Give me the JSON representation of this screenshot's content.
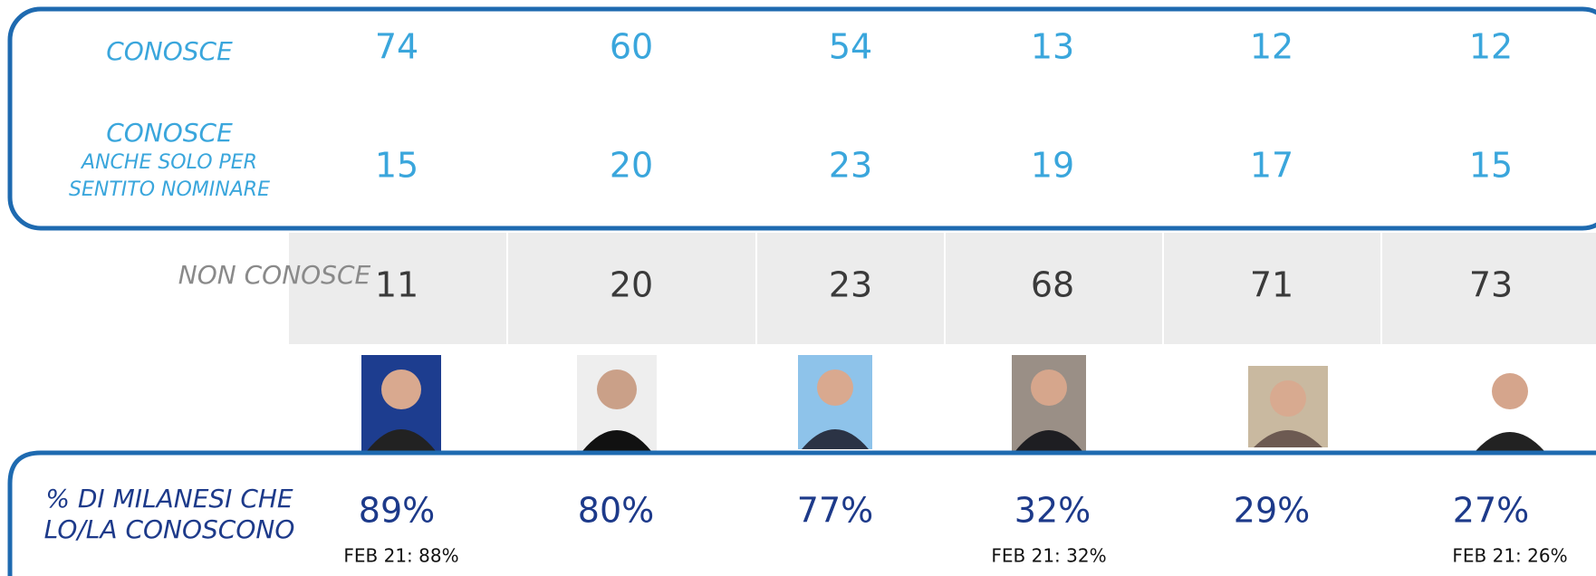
{
  "rows": [
    {
      "label": [
        "CONOSCE"
      ],
      "values": [
        74,
        60,
        54,
        13,
        12,
        12
      ]
    },
    {
      "label": [
        "CONOSCE",
        "ANCHE SOLO PER",
        "SENTITO NOMINARE"
      ],
      "values": [
        15,
        20,
        23,
        19,
        17,
        15
      ]
    },
    {
      "label": [
        "NON CONOSCE"
      ],
      "values": [
        11,
        20,
        23,
        68,
        71,
        73
      ]
    }
  ],
  "awareness": {
    "label": [
      "% DI MILANESI CHE",
      "LO/LA CONOSCONO"
    ],
    "columns": [
      {
        "value": "89%",
        "previous": "FEB 21: 88%"
      },
      {
        "value": "80%"
      },
      {
        "value": "77%"
      },
      {
        "value": "32%",
        "previous": "FEB 21: 32%"
      },
      {
        "value": "29%"
      },
      {
        "value": "27%",
        "previous": "FEB 21: 26%"
      }
    ]
  }
}
